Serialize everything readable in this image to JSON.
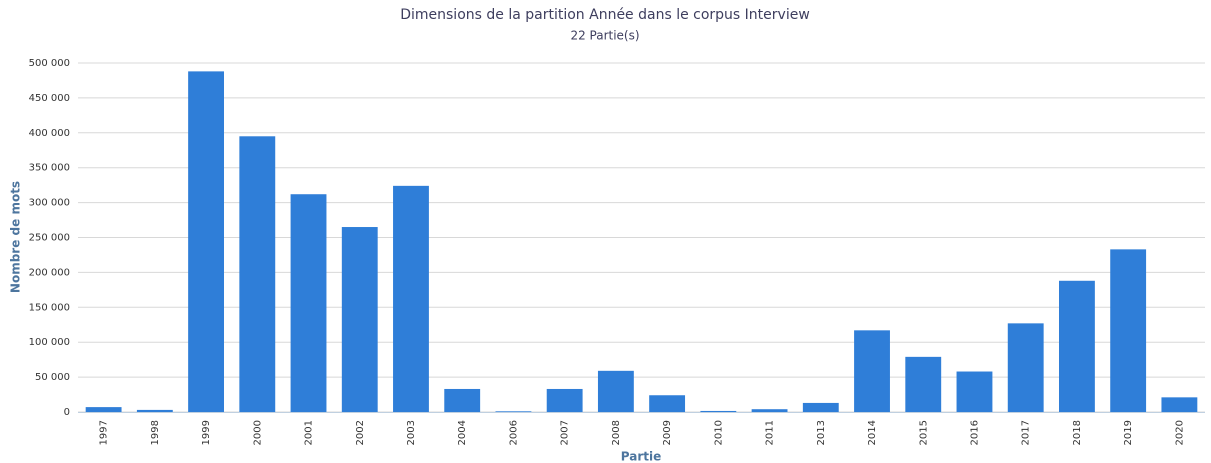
{
  "chart_data": {
    "type": "bar",
    "title": "Dimensions de la partition Année dans le corpus Interview",
    "subtitle": "22 Partie(s)",
    "x_label": "Partie",
    "y_label": "Nombre de mots",
    "categories": [
      "1997",
      "1998",
      "1999",
      "2000",
      "2001",
      "2002",
      "2003",
      "2004",
      "2006",
      "2007",
      "2008",
      "2009",
      "2010",
      "2011",
      "2013",
      "2014",
      "2015",
      "2016",
      "2017",
      "2018",
      "2019",
      "2020"
    ],
    "values": [
      7000,
      3000,
      488000,
      395000,
      312000,
      265000,
      324000,
      33000,
      1000,
      33000,
      59000,
      24000,
      1500,
      4000,
      13000,
      117000,
      79000,
      58000,
      127000,
      188000,
      233000,
      21000
    ],
    "color": "#2f7ed8",
    "ylim": [
      0,
      500000
    ],
    "yticks": [
      0,
      {
        "value": 50000,
        "label": "50 000"
      },
      {
        "value": 100000,
        "label": "100 000"
      },
      {
        "value": 150000,
        "label": "150 000"
      },
      {
        "value": 200000,
        "label": "200 000"
      },
      {
        "value": 250000,
        "label": "250 000"
      },
      {
        "value": 300000,
        "label": "300 000"
      },
      {
        "value": 350000,
        "label": "350 000"
      },
      {
        "value": 400000,
        "label": "400 000"
      },
      {
        "value": 450000,
        "label": "450 000"
      },
      {
        "value": 500000,
        "label": "500 000"
      }
    ],
    "grid": true
  }
}
